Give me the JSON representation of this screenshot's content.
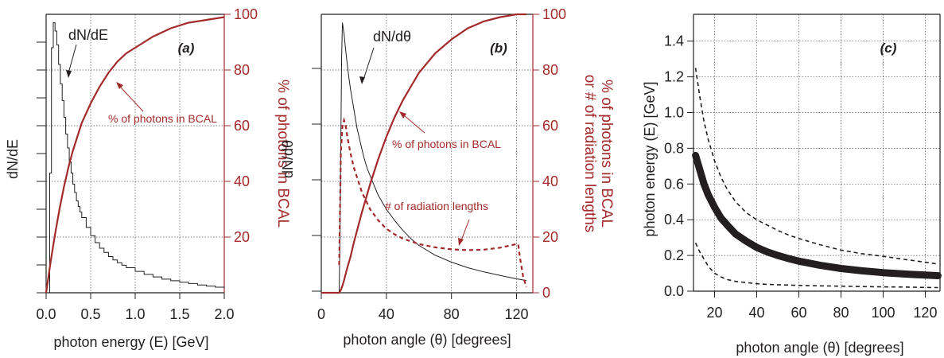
{
  "colors": {
    "black": "#231f20",
    "red": "#a32a2a",
    "grid": "#555555"
  },
  "chart_data": [
    {
      "type": "line",
      "panel_label": "(a)",
      "xlabel": "photon energy  (E)  [GeV]",
      "ylabel_left": "dN/dE",
      "ylabel_right": "% of photons in BCAL",
      "xlim": [
        0,
        2.0
      ],
      "x_ticks": [
        0,
        0.5,
        1.0,
        1.5,
        2.0
      ],
      "x_tick_labels": [
        "0.0",
        "0.5",
        "1.0",
        "1.5",
        "2.0"
      ],
      "y_right_lim": [
        0,
        100
      ],
      "y_right_ticks": [
        20,
        40,
        60,
        80,
        100
      ],
      "y_right_tick_labels": [
        "20",
        "40",
        "60",
        "80",
        "100"
      ],
      "grid": true,
      "annotations": {
        "curve_label": "dN/dE",
        "red_label": "% of photons in BCAL"
      },
      "series": [
        {
          "name": "dN/dE",
          "axis": "left",
          "style": "step",
          "color": "black",
          "x": [
            0.04,
            0.06,
            0.08,
            0.1,
            0.12,
            0.14,
            0.16,
            0.18,
            0.2,
            0.22,
            0.24,
            0.26,
            0.28,
            0.3,
            0.32,
            0.34,
            0.36,
            0.38,
            0.4,
            0.45,
            0.5,
            0.55,
            0.6,
            0.65,
            0.7,
            0.75,
            0.8,
            0.85,
            0.9,
            1.0,
            1.1,
            1.2,
            1.3,
            1.4,
            1.5,
            1.6,
            1.7,
            1.8,
            1.9,
            2.0
          ],
          "y": [
            0.43,
            0.88,
            0.97,
            0.94,
            0.89,
            0.82,
            0.75,
            0.69,
            0.63,
            0.57,
            0.52,
            0.47,
            0.43,
            0.39,
            0.36,
            0.33,
            0.31,
            0.29,
            0.27,
            0.235,
            0.205,
            0.18,
            0.16,
            0.145,
            0.13,
            0.118,
            0.108,
            0.099,
            0.09,
            0.077,
            0.066,
            0.057,
            0.049,
            0.043,
            0.038,
            0.033,
            0.028,
            0.024,
            0.02,
            0.016
          ]
        },
        {
          "name": "% of photons in BCAL",
          "axis": "right",
          "style": "line",
          "color": "red",
          "x": [
            0.0,
            0.05,
            0.1,
            0.15,
            0.2,
            0.25,
            0.3,
            0.35,
            0.4,
            0.5,
            0.6,
            0.7,
            0.8,
            0.9,
            1.0,
            1.2,
            1.4,
            1.6,
            1.8,
            2.0
          ],
          "y": [
            0,
            11,
            21,
            30,
            38,
            45,
            51,
            56,
            61,
            68,
            74,
            79,
            83,
            86,
            88,
            92,
            95,
            97,
            98,
            99
          ]
        }
      ]
    },
    {
      "type": "line",
      "panel_label": "(b)",
      "xlabel": "photon angle  (θ) [degrees]",
      "ylabel_left": "dN/dθ",
      "ylabel_right": "% of photons in BCAL or # of radiation lengths",
      "ylabel_right_lines": [
        "% of photons in BCAL",
        "or # of radiation lengths"
      ],
      "xlim": [
        0,
        130
      ],
      "x_ticks": [
        0,
        40,
        80,
        120
      ],
      "x_tick_labels": [
        "0",
        "40",
        "80",
        "120"
      ],
      "y_right_lim": [
        0,
        100
      ],
      "y_right_ticks": [
        0,
        20,
        40,
        60,
        80,
        100
      ],
      "y_right_tick_labels": [
        "0",
        "20",
        "40",
        "60",
        "80",
        "100"
      ],
      "grid": true,
      "annotations": {
        "curve_label": "dN/dθ",
        "red_label": "% of photons in BCAL",
        "radlen_label": "# of radiation lengths"
      },
      "series": [
        {
          "name": "dN/dθ",
          "axis": "left",
          "style": "line",
          "color": "black",
          "x": [
            0,
            11,
            11.5,
            12,
            12.5,
            13,
            14,
            15,
            16,
            17,
            18,
            20,
            22,
            24,
            26,
            28,
            30,
            35,
            40,
            45,
            50,
            55,
            60,
            70,
            80,
            90,
            100,
            110,
            120,
            126
          ],
          "y": [
            0,
            0,
            0.2,
            0.55,
            0.85,
            0.97,
            0.93,
            0.87,
            0.82,
            0.77,
            0.73,
            0.66,
            0.59,
            0.54,
            0.49,
            0.45,
            0.42,
            0.35,
            0.3,
            0.26,
            0.225,
            0.195,
            0.17,
            0.135,
            0.11,
            0.09,
            0.075,
            0.062,
            0.05,
            0.044
          ]
        },
        {
          "name": "% of photons in BCAL",
          "axis": "right",
          "style": "line",
          "color": "red",
          "x": [
            0,
            11,
            12,
            13,
            14,
            16,
            18,
            20,
            25,
            30,
            35,
            40,
            45,
            50,
            55,
            60,
            70,
            80,
            90,
            100,
            110,
            120,
            126
          ],
          "y": [
            0,
            0,
            1,
            2.5,
            4.5,
            9,
            13,
            18,
            29,
            39,
            48,
            56,
            63,
            69,
            74,
            79,
            86,
            91,
            95,
            97.5,
            99,
            100,
            100
          ]
        },
        {
          "name": "# of radiation lengths",
          "axis": "right",
          "style": "dashed",
          "color": "red",
          "x": [
            11,
            12,
            13,
            14,
            15,
            16,
            18,
            20,
            25,
            30,
            35,
            40,
            45,
            50,
            60,
            70,
            80,
            90,
            100,
            110,
            120,
            121,
            122,
            124,
            126
          ],
          "y": [
            10,
            50,
            60,
            62,
            60,
            56,
            50,
            45,
            36,
            30,
            26,
            23,
            21,
            19.5,
            17.5,
            16.3,
            15.6,
            15.3,
            15.5,
            16.2,
            17.5,
            17.5,
            13,
            6,
            2
          ]
        }
      ]
    },
    {
      "type": "scatter",
      "panel_label": "(c)",
      "xlabel": "photon angle  (θ) [degrees]",
      "ylabel_left": "photon energy  (E)  [GeV]",
      "xlim": [
        10,
        127
      ],
      "x_ticks": [
        20,
        40,
        60,
        80,
        100,
        120
      ],
      "x_tick_labels": [
        "20",
        "40",
        "60",
        "80",
        "100",
        "120"
      ],
      "ylim": [
        0,
        1.55
      ],
      "y_ticks": [
        0,
        0.2,
        0.4,
        0.6,
        0.8,
        1.0,
        1.2,
        1.4
      ],
      "y_tick_labels": [
        "0.0",
        "0.2",
        "0.4",
        "0.6",
        "0.8",
        "1.0",
        "1.2",
        "1.4"
      ],
      "grid": true,
      "series": [
        {
          "name": "central",
          "style": "band",
          "color": "black",
          "x": [
            11,
            13,
            15,
            17,
            20,
            23,
            26,
            30,
            35,
            40,
            45,
            50,
            55,
            60,
            70,
            80,
            90,
            100,
            110,
            120,
            126
          ],
          "y": [
            0.76,
            0.68,
            0.6,
            0.54,
            0.47,
            0.41,
            0.37,
            0.32,
            0.28,
            0.245,
            0.22,
            0.2,
            0.183,
            0.168,
            0.145,
            0.127,
            0.114,
            0.104,
            0.096,
            0.09,
            0.087
          ]
        },
        {
          "name": "upper",
          "style": "dashed",
          "color": "black",
          "x": [
            11,
            13,
            15,
            17,
            20,
            23,
            26,
            30,
            35,
            40,
            45,
            50,
            55,
            60,
            70,
            80,
            90,
            100,
            110,
            120,
            126
          ],
          "y": [
            1.25,
            1.09,
            0.95,
            0.85,
            0.73,
            0.64,
            0.57,
            0.5,
            0.44,
            0.4,
            0.37,
            0.34,
            0.315,
            0.295,
            0.26,
            0.23,
            0.21,
            0.195,
            0.178,
            0.162,
            0.152
          ]
        },
        {
          "name": "lower",
          "style": "dashed",
          "color": "black",
          "x": [
            11,
            13,
            15,
            17,
            20,
            23,
            26,
            30,
            35,
            40,
            45,
            50,
            60,
            70,
            80,
            90,
            100,
            110,
            120,
            126
          ],
          "y": [
            0.27,
            0.22,
            0.18,
            0.14,
            0.1,
            0.08,
            0.065,
            0.055,
            0.048,
            0.042,
            0.038,
            0.036,
            0.032,
            0.03,
            0.028,
            0.026,
            0.024,
            0.023,
            0.021,
            0.02
          ]
        }
      ]
    }
  ]
}
